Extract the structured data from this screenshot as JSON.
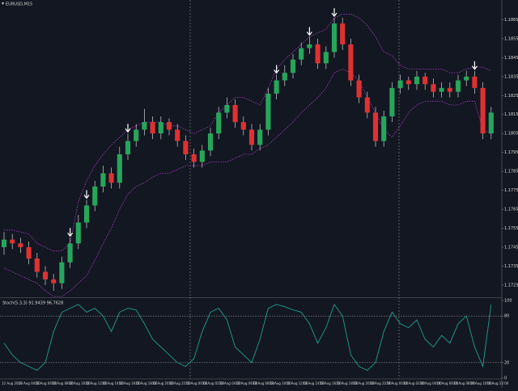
{
  "chart_data": [
    {
      "type": "candlestick",
      "title": "EURUSD,M15",
      "background": "#131722",
      "bull_color": "#26a65b",
      "bear_color": "#e03131",
      "wick_color": "#d0d0d0",
      "band_color": "#b03cc8",
      "arrow_color": "#ffffff",
      "separator_color": "#8a8a8a",
      "open": [
        1.1745,
        1.1749,
        1.1747,
        1.1745,
        1.1739,
        1.1732,
        1.1728,
        1.1726,
        1.1737,
        1.1747,
        1.1758,
        1.1767,
        1.1777,
        1.1784,
        1.1779,
        1.1794,
        1.1801,
        1.1807,
        1.1811,
        1.1805,
        1.1811,
        1.1807,
        1.1801,
        1.1794,
        1.179,
        1.1796,
        1.1805,
        1.1816,
        1.182,
        1.1811,
        1.1807,
        1.1799,
        1.1807,
        1.1826,
        1.1833,
        1.1837,
        1.1844,
        1.185,
        1.1852,
        1.1842,
        1.1848,
        1.1863,
        1.1852,
        1.1833,
        1.1824,
        1.1816,
        1.1801,
        1.1814,
        1.1829,
        1.1833,
        1.1831,
        1.1835,
        1.1831,
        1.1827,
        1.1829,
        1.1827,
        1.1833,
        1.1835,
        1.1829,
        1.1805
      ],
      "high": [
        1.1753,
        1.1752,
        1.175,
        1.1748,
        1.1742,
        1.1735,
        1.1731,
        1.174,
        1.175,
        1.1762,
        1.177,
        1.178,
        1.1788,
        1.1787,
        1.1798,
        1.1805,
        1.181,
        1.1818,
        1.1814,
        1.1814,
        1.1813,
        1.181,
        1.1804,
        1.1797,
        1.1799,
        1.1808,
        1.1819,
        1.1824,
        1.1823,
        1.1814,
        1.181,
        1.181,
        1.1829,
        1.1836,
        1.1841,
        1.1847,
        1.1853,
        1.1856,
        1.1855,
        1.1851,
        1.1866,
        1.1866,
        1.1855,
        1.1836,
        1.1827,
        1.1819,
        1.1817,
        1.1832,
        1.1836,
        1.1835,
        1.1838,
        1.1837,
        1.1834,
        1.1832,
        1.1832,
        1.1836,
        1.1838,
        1.1838,
        1.1832,
        1.1819
      ],
      "low": [
        1.1741,
        1.1744,
        1.1742,
        1.1736,
        1.1729,
        1.1725,
        1.1722,
        1.1723,
        1.1734,
        1.1744,
        1.1755,
        1.1764,
        1.1774,
        1.1776,
        1.1776,
        1.1791,
        1.1798,
        1.1804,
        1.1802,
        1.1802,
        1.1804,
        1.1798,
        1.1791,
        1.1787,
        1.1787,
        1.1793,
        1.1802,
        1.1813,
        1.1808,
        1.1804,
        1.1796,
        1.1796,
        1.1804,
        1.1823,
        1.183,
        1.1834,
        1.1841,
        1.1847,
        1.1839,
        1.1839,
        1.1845,
        1.1849,
        1.183,
        1.1821,
        1.1813,
        1.1798,
        1.1798,
        1.1811,
        1.1826,
        1.1828,
        1.1828,
        1.1828,
        1.1824,
        1.1824,
        1.1824,
        1.1824,
        1.183,
        1.1826,
        1.1802,
        1.1802
      ],
      "close": [
        1.1749,
        1.1747,
        1.1745,
        1.1739,
        1.1732,
        1.1728,
        1.1726,
        1.1737,
        1.1747,
        1.1758,
        1.1767,
        1.1777,
        1.1784,
        1.1779,
        1.1794,
        1.1801,
        1.1807,
        1.1811,
        1.1805,
        1.1811,
        1.1807,
        1.1801,
        1.1794,
        1.179,
        1.1796,
        1.1805,
        1.1816,
        1.182,
        1.1811,
        1.1807,
        1.1799,
        1.1807,
        1.1826,
        1.1833,
        1.1837,
        1.1844,
        1.185,
        1.1852,
        1.1842,
        1.1848,
        1.1863,
        1.1852,
        1.1833,
        1.1824,
        1.1816,
        1.1801,
        1.1814,
        1.1829,
        1.1833,
        1.1831,
        1.1835,
        1.1831,
        1.1827,
        1.1829,
        1.1827,
        1.1833,
        1.1835,
        1.1829,
        1.1805,
        1.1816
      ],
      "upper_band": [
        1.1754,
        1.1754,
        1.1753,
        1.1752,
        1.1747,
        1.1745,
        1.1743,
        1.1743,
        1.1747,
        1.1769,
        1.178,
        1.1788,
        1.1794,
        1.1799,
        1.1803,
        1.1807,
        1.1809,
        1.1811,
        1.1811,
        1.1811,
        1.1809,
        1.1809,
        1.1807,
        1.1805,
        1.1807,
        1.1809,
        1.1816,
        1.182,
        1.1824,
        1.1824,
        1.1822,
        1.182,
        1.1829,
        1.1839,
        1.1844,
        1.1848,
        1.1852,
        1.1856,
        1.1858,
        1.186,
        1.1866,
        1.1868,
        1.1868,
        1.1866,
        1.1862,
        1.1856,
        1.1848,
        1.1846,
        1.1841,
        1.1839,
        1.1839,
        1.1839,
        1.1839,
        1.1839,
        1.1837,
        1.1837,
        1.1839,
        1.184,
        1.184,
        1.1838
      ],
      "lower_band": [
        1.1734,
        1.1732,
        1.173,
        1.1728,
        1.1726,
        1.1722,
        1.1719,
        1.1719,
        1.1722,
        1.1726,
        1.173,
        1.1738,
        1.1747,
        1.1755,
        1.1765,
        1.1773,
        1.1777,
        1.1779,
        1.1782,
        1.1784,
        1.1784,
        1.1786,
        1.1788,
        1.1788,
        1.1788,
        1.179,
        1.179,
        1.179,
        1.1792,
        1.1794,
        1.1794,
        1.1797,
        1.1799,
        1.1803,
        1.1807,
        1.1811,
        1.1816,
        1.182,
        1.1824,
        1.1829,
        1.1837,
        1.1839,
        1.1837,
        1.1833,
        1.1824,
        1.1816,
        1.1807,
        1.1803,
        1.1809,
        1.1816,
        1.182,
        1.1822,
        1.1822,
        1.1822,
        1.182,
        1.182,
        1.1822,
        1.1822,
        1.1807,
        1.1805
      ],
      "signals": [
        8,
        10,
        15,
        33,
        37,
        40,
        57
      ],
      "ylim": [
        1.1719,
        1.1872
      ],
      "yticks": [
        {
          "value": 1.1725,
          "label": "1.17250"
        },
        {
          "value": 1.1735,
          "label": "1.17350"
        },
        {
          "value": 1.1745,
          "label": "1.17450"
        },
        {
          "value": 1.1755,
          "label": "1.17550"
        },
        {
          "value": 1.1765,
          "label": "1.17650"
        },
        {
          "value": 1.1775,
          "label": "1.17750"
        },
        {
          "value": 1.1785,
          "label": "1.17850"
        },
        {
          "value": 1.1795,
          "label": "1.17950"
        },
        {
          "value": 1.1805,
          "label": "1.18050"
        },
        {
          "value": 1.1815,
          "label": "1.18150"
        },
        {
          "value": 1.1825,
          "label": "1.18250"
        },
        {
          "value": 1.1835,
          "label": "1.18350"
        },
        {
          "value": 1.1845,
          "label": "1.18450"
        },
        {
          "value": 1.1855,
          "label": "1.18550"
        },
        {
          "value": 1.1865,
          "label": "1.18650"
        }
      ],
      "time_labels": [
        "12 Aug 2020",
        "12 Aug 04:00",
        "12 Aug 06:00",
        "12 Aug 08:00",
        "12 Aug 10:00",
        "12 Aug 12:00",
        "12 Aug 14:00",
        "12 Aug 16:00",
        "12 Aug 18:00",
        "12 Aug 20:00",
        "12 Aug 22:00",
        "13 Aug 00:00",
        "13 Aug 02:00",
        "13 Aug 04:00",
        "13 Aug 06:00",
        "13 Aug 08:00",
        "13 Aug 10:00",
        "13 Aug 12:00",
        "13 Aug 14:00",
        "13 Aug 16:00",
        "13 Aug 18:00",
        "13 Aug 20:00",
        "13 Aug 22:00",
        "14 Aug 00:00",
        "14 Aug 02:00",
        "14 Aug 04:00",
        "14 Aug 06:00",
        "14 Aug 08:00",
        "14 Aug 10:00",
        "14 Aug 12:00"
      ]
    },
    {
      "type": "line",
      "title": "Stoch(5,3,3) 91.9439 96.7628",
      "color": "#1f9e8f",
      "level_color": "#9a9a9a",
      "values": [
        45,
        30,
        20,
        15,
        10,
        20,
        60,
        85,
        90,
        95,
        85,
        90,
        80,
        60,
        85,
        90,
        88,
        70,
        50,
        40,
        30,
        20,
        15,
        25,
        60,
        85,
        90,
        75,
        40,
        30,
        20,
        50,
        90,
        95,
        92,
        88,
        85,
        70,
        45,
        65,
        95,
        80,
        30,
        15,
        10,
        20,
        60,
        85,
        70,
        65,
        75,
        50,
        40,
        55,
        45,
        70,
        80,
        40,
        15,
        95
      ],
      "ylim": [
        0,
        100
      ],
      "yticks": [
        0,
        20,
        80,
        100
      ],
      "levels": [
        20,
        80
      ]
    }
  ]
}
